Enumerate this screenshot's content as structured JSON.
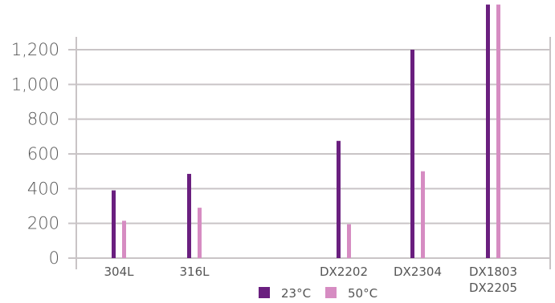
{
  "chart_data": {
    "type": "bar",
    "categories": [
      [
        "304L"
      ],
      [
        "316L"
      ],
      [
        "DX2202"
      ],
      [
        "DX2304"
      ],
      [
        "DX1803",
        "DX2205"
      ]
    ],
    "series": [
      {
        "name": "23°C",
        "color": "#6a1f7f",
        "values": [
          390,
          485,
          675,
          1200,
          1460
        ]
      },
      {
        "name": "50°C",
        "color": "#d68cc2",
        "values": [
          215,
          290,
          195,
          500,
          1460
        ]
      }
    ],
    "yticks": [
      0,
      200,
      400,
      600,
      800,
      1000,
      1200
    ],
    "ytick_labels": [
      "0",
      "200",
      "400",
      "600",
      "800",
      "1,000",
      "1,200"
    ],
    "ylim": [
      0,
      1460
    ],
    "grid": true,
    "legend": "bottom-center"
  }
}
